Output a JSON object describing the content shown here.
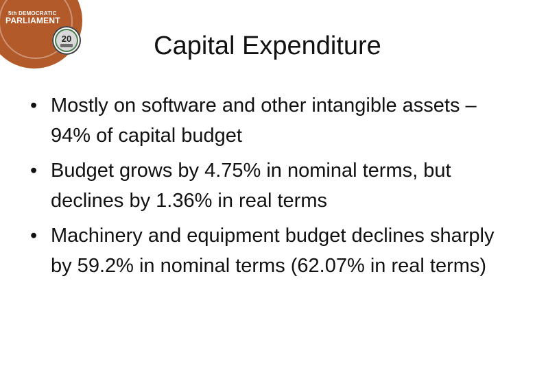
{
  "logo": {
    "line1": "5th DEMOCRATIC",
    "line2": "PARLIAMENT",
    "badge_number": "20",
    "colors": {
      "disc": "#b35a2a",
      "badge_ring": "#4a7d4f"
    }
  },
  "slide": {
    "title": "Capital Expenditure",
    "bullet_glyph": "•",
    "bullets": [
      "Mostly on software and other intangible assets – 94% of capital budget",
      "Budget grows by 4.75% in nominal terms, but declines by 1.36% in real terms",
      "Machinery and equipment budget declines sharply by 59.2% in nominal terms (62.07% in real terms)"
    ]
  }
}
